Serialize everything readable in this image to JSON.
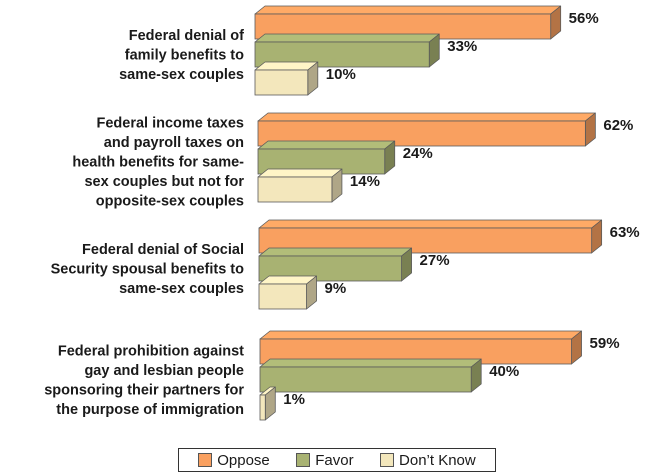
{
  "chart_data": {
    "type": "bar",
    "orientation": "horizontal",
    "style": "3d",
    "xlim": [
      0,
      63
    ],
    "categories": [
      [
        "Federal denial of",
        "family benefits to",
        "same-sex couples"
      ],
      [
        "Federal income taxes",
        "and payroll taxes on",
        "health benefits for same-",
        "sex couples but not for",
        "opposite-sex couples"
      ],
      [
        "Federal denial of Social",
        "Security spousal benefits to",
        "same-sex couples"
      ],
      [
        "Federal prohibition against",
        "gay and lesbian people",
        "sponsoring their partners for",
        "the purpose of immigration"
      ]
    ],
    "series": [
      {
        "name": "Oppose",
        "color": "#F9A060",
        "values": [
          56,
          62,
          63,
          59
        ],
        "labels": [
          "56%",
          "62%",
          "63%",
          "59%"
        ]
      },
      {
        "name": "Favor",
        "color": "#A8B272",
        "values": [
          33,
          24,
          27,
          40
        ],
        "labels": [
          "33%",
          "24%",
          "27%",
          "40%"
        ]
      },
      {
        "name": "Don’t Know",
        "color": "#F3E7BC",
        "values": [
          10,
          14,
          9,
          1
        ],
        "labels": [
          "10%",
          "14%",
          "9%",
          "1%"
        ]
      }
    ],
    "legend_position": "bottom"
  }
}
